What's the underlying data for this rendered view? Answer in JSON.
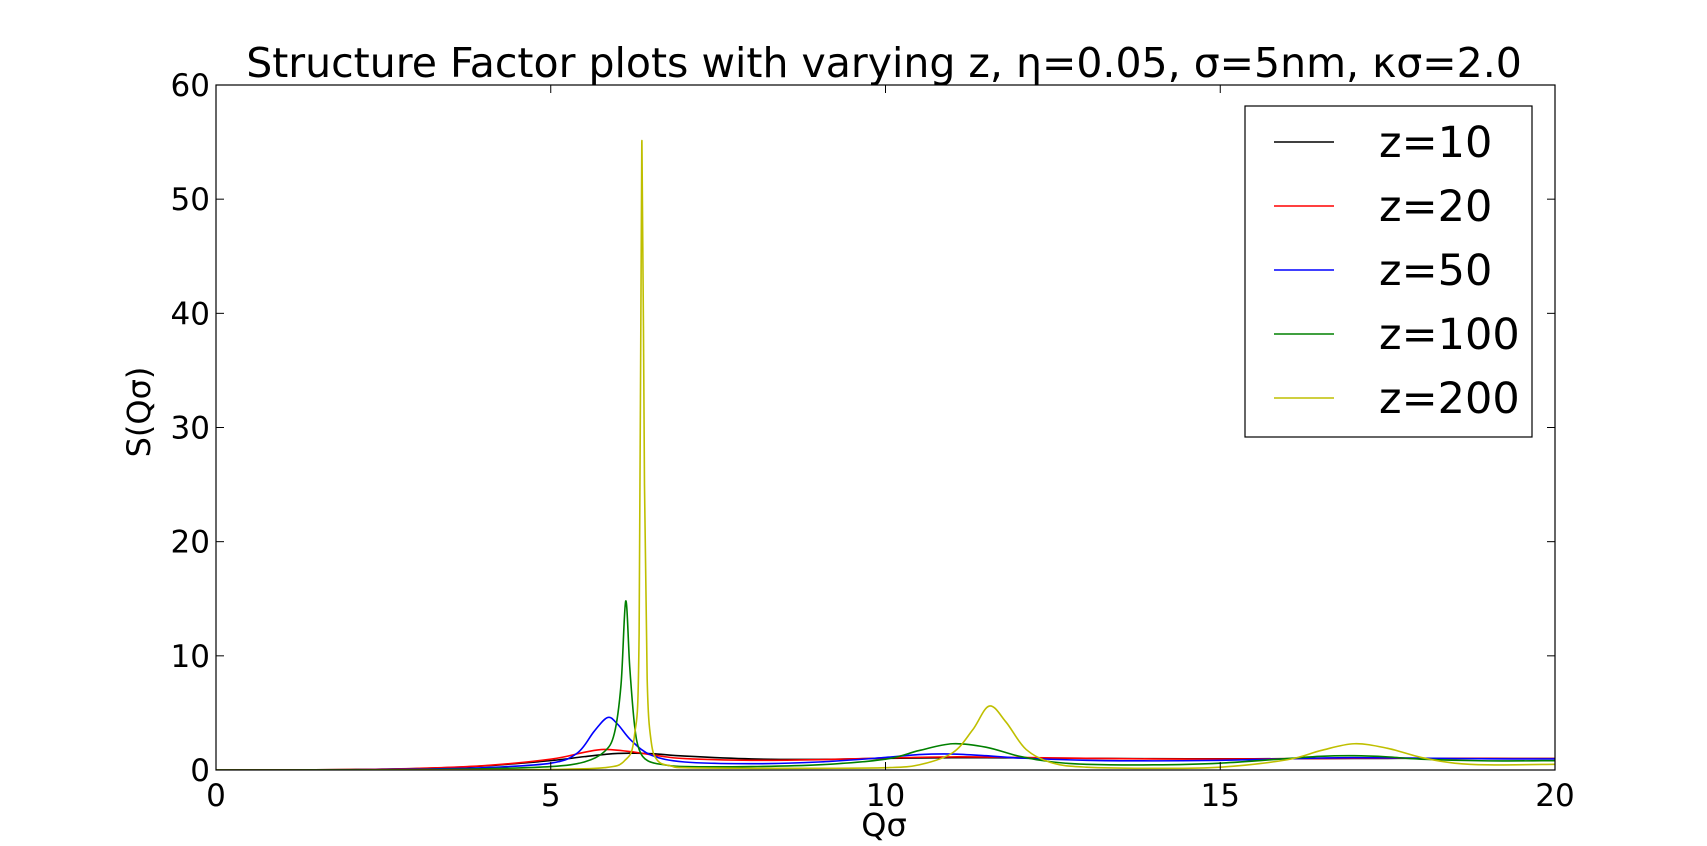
{
  "chart_data": {
    "type": "line",
    "title": "Structure Factor plots with varying z, η=0.05, σ=5nm, κσ=2.0",
    "xlabel": "Qσ",
    "ylabel": "S(Qσ)",
    "xlim": [
      0,
      20
    ],
    "ylim": [
      0,
      60
    ],
    "xticks": [
      0,
      5,
      10,
      15,
      20
    ],
    "yticks": [
      0,
      10,
      20,
      30,
      40,
      50,
      60
    ],
    "grid": false,
    "legend_position": "top-right",
    "series": [
      {
        "name": "z=10",
        "color": "#000000",
        "x": [
          0,
          1,
          2,
          3,
          4,
          5,
          5.5,
          6.0,
          6.5,
          7,
          8,
          9,
          10,
          11,
          12,
          13,
          14,
          15,
          16,
          17,
          18,
          19,
          20
        ],
        "y": [
          0.0,
          0.01,
          0.04,
          0.13,
          0.36,
          0.82,
          1.17,
          1.45,
          1.43,
          1.22,
          0.97,
          0.93,
          1.02,
          1.08,
          1.06,
          1.02,
          0.99,
          0.98,
          0.99,
          1.01,
          1.02,
          1.01,
          1.0
        ]
      },
      {
        "name": "z=20",
        "color": "#ff0000",
        "x": [
          0,
          1,
          2,
          3,
          4,
          5,
          5.5,
          5.8,
          6.2,
          6.6,
          7,
          8,
          9,
          10,
          11,
          12,
          13,
          14,
          15,
          16,
          17,
          18,
          19,
          20
        ],
        "y": [
          0.0,
          0.01,
          0.04,
          0.14,
          0.38,
          0.95,
          1.55,
          1.8,
          1.6,
          1.25,
          1.0,
          0.85,
          0.9,
          1.05,
          1.15,
          1.1,
          1.02,
          0.97,
          0.96,
          0.99,
          1.03,
          1.03,
          1.01,
          1.0
        ]
      },
      {
        "name": "z=50",
        "color": "#0000ff",
        "x": [
          0,
          1,
          2,
          3,
          4,
          5,
          5.4,
          5.65,
          5.85,
          6.0,
          6.2,
          6.5,
          7,
          8,
          9,
          10,
          10.5,
          11,
          11.5,
          12,
          13,
          14,
          15,
          16,
          16.5,
          17,
          18,
          19,
          20
        ],
        "y": [
          0.0,
          0.0,
          0.02,
          0.07,
          0.2,
          0.6,
          1.5,
          3.4,
          4.6,
          4.0,
          2.6,
          1.3,
          0.7,
          0.55,
          0.7,
          1.1,
          1.35,
          1.4,
          1.25,
          1.05,
          0.85,
          0.8,
          0.85,
          0.98,
          1.05,
          1.08,
          1.04,
          0.98,
          0.97
        ]
      },
      {
        "name": "z=100",
        "color": "#008000",
        "x": [
          0,
          1,
          2,
          3,
          4,
          5,
          5.5,
          5.8,
          5.95,
          6.05,
          6.12,
          6.18,
          6.25,
          6.32,
          6.45,
          6.7,
          7,
          8,
          9,
          10,
          10.5,
          11,
          11.5,
          12,
          12.5,
          13,
          14,
          15,
          16,
          16.5,
          17,
          17.5,
          18,
          19,
          20
        ],
        "y": [
          0.0,
          0.0,
          0.01,
          0.03,
          0.1,
          0.3,
          0.7,
          1.6,
          3.2,
          7.5,
          14.8,
          9.0,
          4.0,
          1.8,
          0.8,
          0.45,
          0.3,
          0.3,
          0.45,
          0.95,
          1.7,
          2.3,
          2.0,
          1.2,
          0.7,
          0.5,
          0.45,
          0.6,
          1.0,
          1.2,
          1.25,
          1.15,
          0.95,
          0.8,
          0.82
        ]
      },
      {
        "name": "z=200",
        "color": "#bfbf00",
        "x": [
          0,
          1,
          2,
          3,
          4,
          5,
          5.8,
          6.1,
          6.25,
          6.32,
          6.36,
          6.4,
          6.44,
          6.5,
          6.6,
          6.8,
          7,
          8,
          9,
          10,
          10.5,
          11,
          11.3,
          11.55,
          11.8,
          12.1,
          12.5,
          13,
          14,
          15,
          16,
          16.5,
          17,
          17.5,
          18,
          18.5,
          19,
          20
        ],
        "y": [
          0.0,
          0.0,
          0.0,
          0.01,
          0.02,
          0.05,
          0.2,
          0.8,
          3.0,
          12.0,
          55.0,
          25.0,
          8.0,
          2.5,
          0.8,
          0.35,
          0.2,
          0.15,
          0.15,
          0.2,
          0.45,
          1.5,
          3.5,
          5.6,
          4.2,
          1.8,
          0.6,
          0.25,
          0.15,
          0.25,
          0.9,
          1.7,
          2.3,
          1.9,
          1.1,
          0.6,
          0.45,
          0.5
        ]
      }
    ]
  }
}
